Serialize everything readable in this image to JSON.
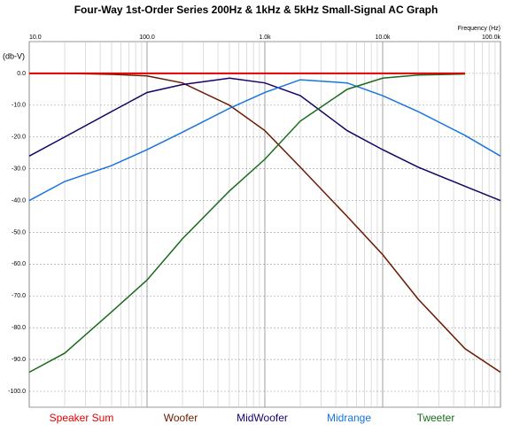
{
  "chart_data": {
    "type": "line",
    "title": "Four-Way 1st-Order Series 200Hz & 1kHz & 5kHz Small-Signal AC Graph",
    "x_label": "Frequency  (Hz)",
    "y_label": "(db-V)",
    "x": [
      10,
      20,
      50,
      100,
      200,
      500,
      1000,
      2000,
      5000,
      10000,
      20000,
      50000,
      100000
    ],
    "xscale": "log",
    "xlim": [
      10,
      100000
    ],
    "xticks": [
      {
        "value": 10,
        "label": "10.0"
      },
      {
        "value": 100,
        "label": "100.0"
      },
      {
        "value": 1000,
        "label": "1.0k"
      },
      {
        "value": 10000,
        "label": "10.0k"
      },
      {
        "value": 100000,
        "label": "100.0k"
      }
    ],
    "ylim": [
      -105,
      10
    ],
    "yticks": [
      {
        "value": 0,
        "label": "0.0"
      },
      {
        "value": -10,
        "label": "-10.0"
      },
      {
        "value": -20,
        "label": "-20.0"
      },
      {
        "value": -30,
        "label": "-30.0"
      },
      {
        "value": -40,
        "label": "-40.0"
      },
      {
        "value": -50,
        "label": "-50.0"
      },
      {
        "value": -60,
        "label": "-60.0"
      },
      {
        "value": -70,
        "label": "-70.0"
      },
      {
        "value": -80,
        "label": "-80.0"
      },
      {
        "value": -90,
        "label": "-90.0"
      },
      {
        "value": -100,
        "label": "-100.0"
      }
    ],
    "grid": true,
    "legend": "bottom",
    "series": [
      {
        "name": "Speaker Sum",
        "color": "#e00000",
        "values": [
          0,
          0,
          0,
          0,
          0,
          0,
          0,
          0,
          0,
          0,
          0,
          0,
          null
        ]
      },
      {
        "name": "Woofer",
        "color": "#6b1a00",
        "values": [
          0,
          0,
          -0.3,
          -0.8,
          -3,
          -10,
          -18,
          -29.5,
          -45,
          -57,
          -71,
          -86.6,
          -94
        ]
      },
      {
        "name": "MidWoofer",
        "color": "#1a0066",
        "values": [
          -26,
          -20,
          -12,
          -6,
          -3.5,
          -1.5,
          -3,
          -7,
          -18,
          -24,
          -29.5,
          -35.5,
          -40
        ]
      },
      {
        "name": "Midrange",
        "color": "#1874e0",
        "values": [
          -40,
          -34,
          -29,
          -24,
          -18.5,
          -11,
          -6,
          -2,
          -3,
          -7,
          -12,
          -19.5,
          -26
        ]
      },
      {
        "name": "Tweeter",
        "color": "#1a6b1a",
        "values": [
          -94,
          -88,
          -75,
          -65,
          -52,
          -37,
          -27,
          -15,
          -5,
          -1.5,
          -0.5,
          -0.2,
          null
        ]
      }
    ]
  }
}
